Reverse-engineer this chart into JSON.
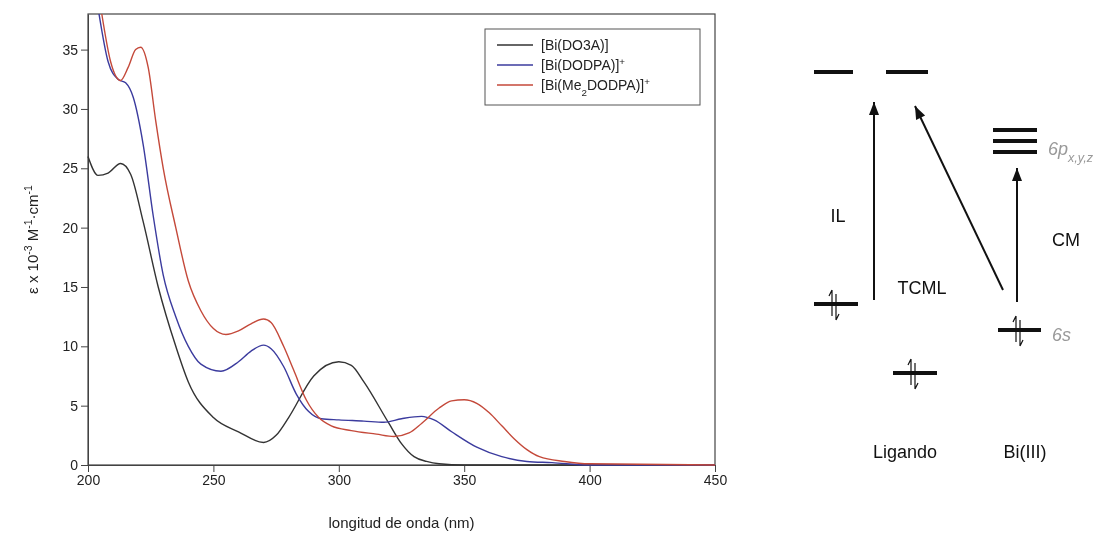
{
  "chart_data": [
    {
      "type": "line",
      "xlabel": "longitud de onda (nm)",
      "ylabel": "ε x 10$^{-3}$ M$^{-1}$·cm$^{-1}$",
      "xlim": [
        200,
        450
      ],
      "ylim": [
        0,
        38
      ],
      "xticks": [
        200,
        250,
        300,
        350,
        400,
        450
      ],
      "yticks": [
        0,
        5,
        10,
        15,
        20,
        25,
        30,
        35
      ],
      "grid": false,
      "legend": "top right",
      "marker": "none",
      "line_style": "solid",
      "series": [
        {
          "name": "[Bi(DO3A)]",
          "color": "#333333",
          "x": [
            200,
            204,
            208,
            213,
            217,
            222,
            228,
            235,
            240,
            250,
            260,
            270,
            275,
            280,
            290,
            300,
            305,
            310,
            320,
            325,
            330,
            335,
            340,
            350,
            450
          ],
          "values": [
            26,
            24.4,
            24.6,
            25.4,
            24.5,
            20.5,
            15,
            10,
            7,
            4,
            2.8,
            1.9,
            2.5,
            4,
            7.5,
            8.7,
            8.4,
            7,
            3.5,
            1.8,
            0.7,
            0.3,
            0.1,
            0,
            0
          ]
        },
        {
          "name": "[Bi(DODPA)]$^{+}$",
          "color": "#3b3b9e",
          "x": [
            204.4,
            208,
            212,
            215,
            218,
            222,
            226,
            230,
            235,
            240,
            245,
            253,
            260,
            265,
            270,
            273,
            278,
            283,
            288,
            293,
            300,
            310,
            318,
            325,
            333,
            338,
            345,
            355,
            365,
            375,
            385,
            400,
            450
          ],
          "values": [
            38,
            34,
            32.5,
            32.2,
            31,
            27,
            21,
            16,
            12.5,
            10,
            8.5,
            7.9,
            8.7,
            9.6,
            10.1,
            9.8,
            8.3,
            6,
            4.5,
            3.9,
            3.8,
            3.7,
            3.6,
            3.9,
            4.1,
            3.8,
            2.8,
            1.5,
            0.7,
            0.3,
            0.2,
            0,
            0
          ]
        },
        {
          "name": "[Bi(Me$_{2}$DODPA)]$^{+}$",
          "color": "#c4493a",
          "x": [
            205.5,
            209,
            213,
            216,
            219,
            221,
            224,
            227,
            230,
            235,
            240,
            245,
            250,
            255,
            260,
            265,
            270,
            273,
            278,
            282,
            287,
            292,
            297,
            305,
            315,
            322,
            328,
            333,
            340,
            345,
            350,
            355,
            360,
            365,
            370,
            375,
            380,
            390,
            400,
            450
          ],
          "values": [
            38,
            34,
            32.4,
            33.5,
            35,
            35.2,
            33.5,
            29,
            25,
            20,
            15.5,
            13,
            11.5,
            11,
            11.3,
            11.9,
            12.3,
            12,
            10,
            8,
            5.5,
            4,
            3.3,
            2.9,
            2.6,
            2.4,
            2.7,
            3.5,
            4.8,
            5.4,
            5.5,
            5.2,
            4.4,
            3.3,
            2.2,
            1.3,
            0.7,
            0.3,
            0.1,
            0
          ]
        }
      ]
    },
    {
      "type": "other",
      "annotations": [
        "IL",
        "TCML",
        "CM",
        "6p$_{x,y,z}$",
        "6s",
        "Ligando",
        "Bi(III)"
      ]
    }
  ]
}
